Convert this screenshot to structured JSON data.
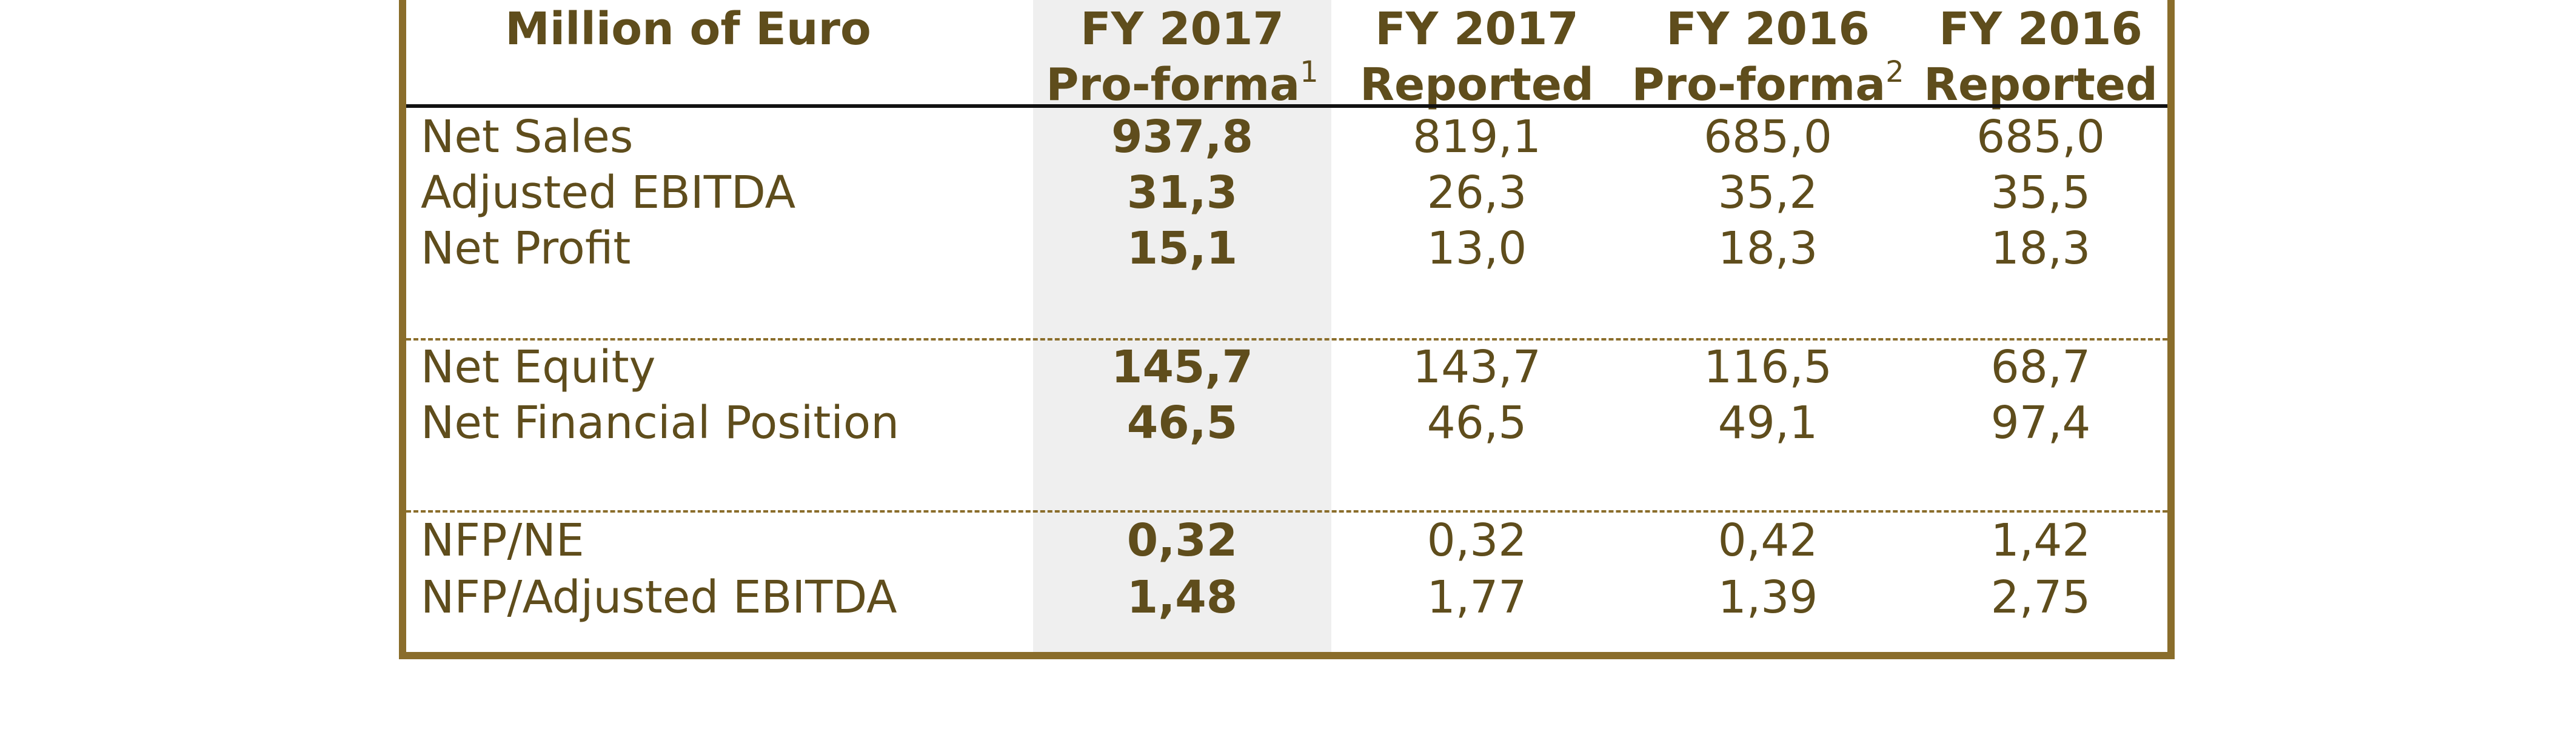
{
  "table": {
    "headers": [
      {
        "line1": "Million of Euro",
        "line2": "",
        "sup": ""
      },
      {
        "line1": "FY 2017",
        "line2": "Pro-forma",
        "sup": "1"
      },
      {
        "line1": "FY 2017",
        "line2": "Reported",
        "sup": ""
      },
      {
        "line1": "FY 2016",
        "line2": "Pro-forma",
        "sup": "2"
      },
      {
        "line1": "FY 2016",
        "line2": "Reported",
        "sup": ""
      }
    ],
    "groups": [
      {
        "rows": [
          {
            "label": "Net Sales",
            "values": [
              "937,8",
              "819,1",
              "685,0",
              "685,0"
            ]
          },
          {
            "label": "Adjusted EBITDA",
            "values": [
              "31,3",
              "26,3",
              "35,2",
              "35,5"
            ]
          },
          {
            "label": "Net Profit",
            "values": [
              "15,1",
              "13,0",
              "18,3",
              "18,3"
            ]
          }
        ]
      },
      {
        "rows": [
          {
            "label": "Net Equity",
            "values": [
              "145,7",
              "143,7",
              "116,5",
              "68,7"
            ]
          },
          {
            "label": "Net Financial Position",
            "values": [
              "46,5",
              "46,5",
              "49,1",
              "97,4"
            ]
          }
        ]
      },
      {
        "rows": [
          {
            "label": "NFP/NE",
            "values": [
              "0,32",
              "0,32",
              "0,42",
              "1,42"
            ]
          },
          {
            "label": "NFP/Adjusted EBITDA",
            "values": [
              "1,48",
              "1,77",
              "1,39",
              "2,75"
            ]
          }
        ]
      }
    ]
  },
  "colors": {
    "text": "#5f4d1c",
    "border": "#8a6d2b",
    "highlight_column": "#efefef",
    "header_rule": "#111111"
  }
}
